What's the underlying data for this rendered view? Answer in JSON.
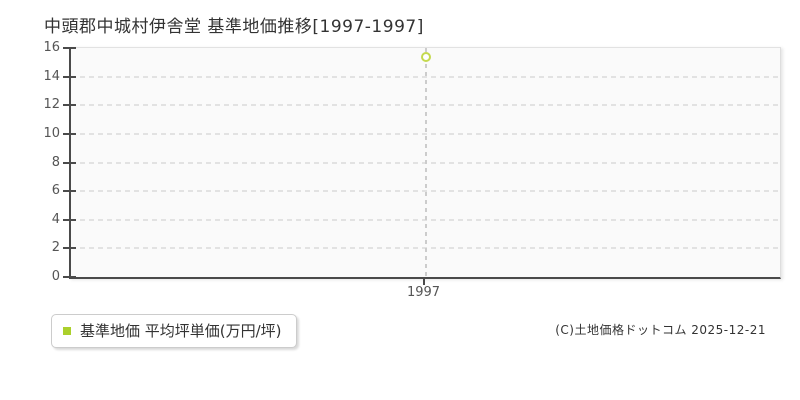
{
  "page": {
    "title": "中頭郡中城村伊舎堂 基準地価推移[1997-1997]",
    "copyright": "(C)土地価格ドットコム 2025-12-21"
  },
  "legend": {
    "bullet_icon": "square-bullet",
    "label": "基準地価 平均坪単価(万円/坪)",
    "bullet_color": "#abd02c"
  },
  "chart_data": {
    "type": "line",
    "title": "中頭郡中城村伊舎堂 基準地価推移[1997-1997]",
    "x": [
      "1997"
    ],
    "series": [
      {
        "name": "基準地価 平均坪単価(万円/坪)",
        "values": [
          15.4
        ]
      }
    ],
    "xlabel": "",
    "ylabel": "",
    "ylim": [
      0,
      16
    ],
    "yticks": [
      0,
      2,
      4,
      6,
      8,
      10,
      12,
      14,
      16
    ],
    "grid": "horizontal-dashed",
    "marker": "open-circle",
    "legend_position": "bottom-left",
    "colors": {
      "marker_stroke": "#c4d94e",
      "marker_fill": "#ffffff",
      "legend_bullet": "#abd02c",
      "axis": "#4a4a4a",
      "gridline": "#e2e2e2",
      "guide_line": "#cccccc",
      "plot_background": "#fafafa",
      "title_text": "#333333",
      "tick_text": "#555555"
    }
  }
}
